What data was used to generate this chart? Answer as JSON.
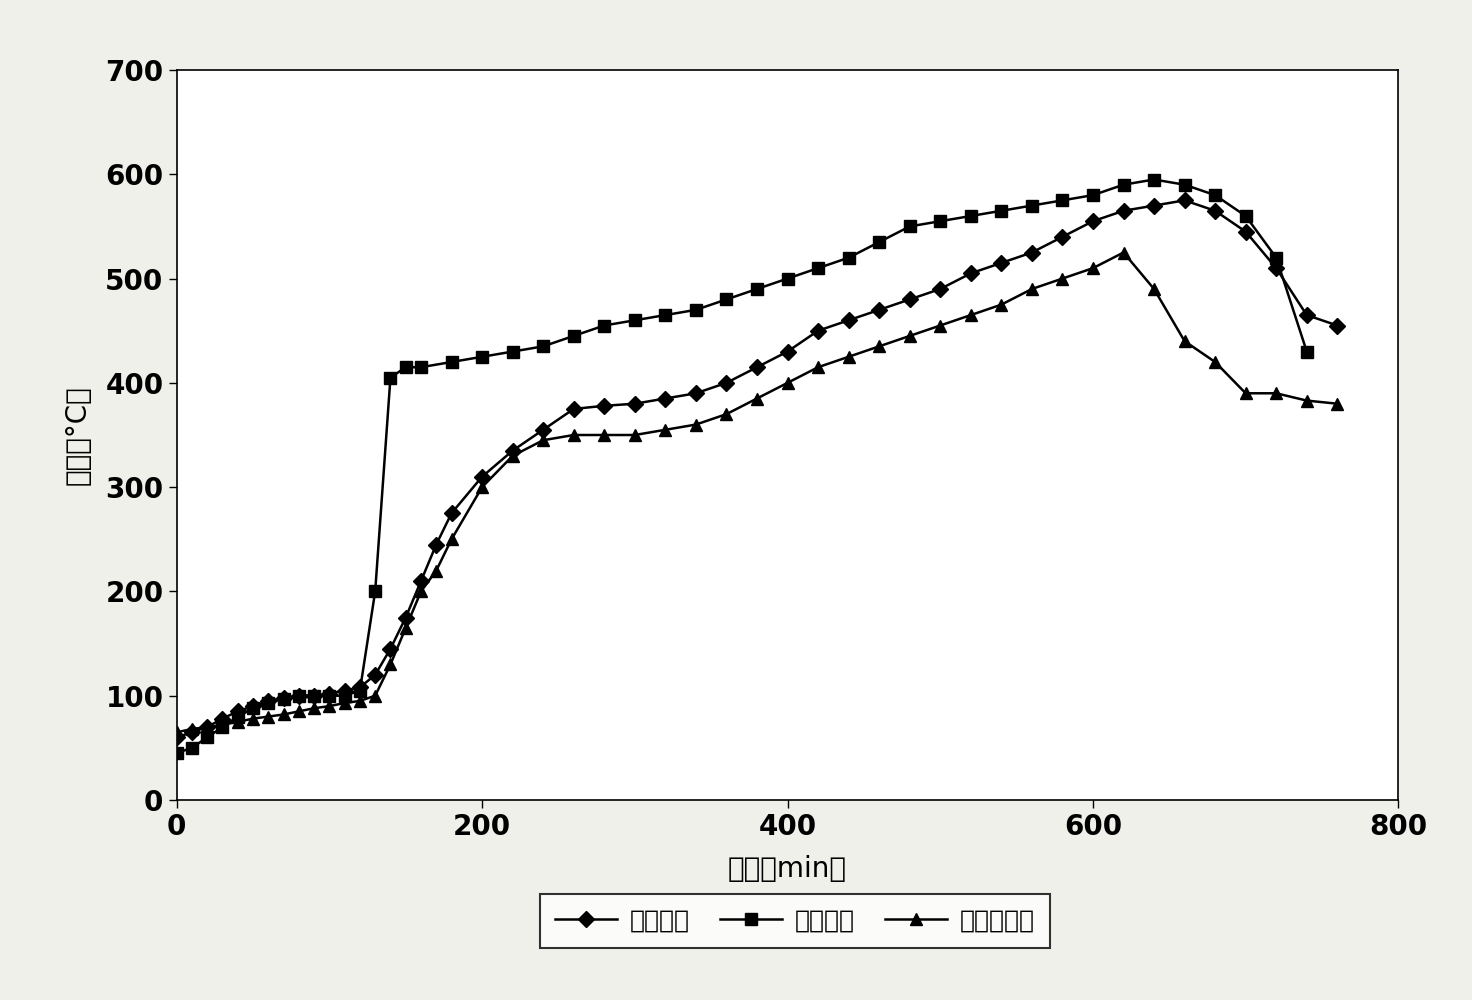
{
  "title": "",
  "xlabel": "时间（min）",
  "ylabel": "温度（°C）",
  "xlim": [
    0,
    800
  ],
  "ylim": [
    0,
    700
  ],
  "xticks": [
    0,
    200,
    400,
    600,
    800
  ],
  "yticks": [
    0,
    100,
    200,
    300,
    400,
    500,
    600,
    700
  ],
  "series": [
    {
      "label": "自然状态",
      "marker": "D",
      "x": [
        0,
        10,
        20,
        30,
        40,
        50,
        60,
        70,
        80,
        90,
        100,
        110,
        120,
        130,
        140,
        150,
        160,
        170,
        180,
        200,
        220,
        240,
        260,
        280,
        300,
        320,
        340,
        360,
        380,
        400,
        420,
        440,
        460,
        480,
        500,
        520,
        540,
        560,
        580,
        600,
        620,
        640,
        660,
        680,
        700,
        720,
        740,
        760
      ],
      "y": [
        60,
        65,
        70,
        78,
        85,
        90,
        95,
        98,
        100,
        100,
        102,
        105,
        108,
        120,
        145,
        175,
        210,
        245,
        275,
        310,
        335,
        355,
        375,
        378,
        380,
        385,
        390,
        400,
        415,
        430,
        450,
        460,
        470,
        480,
        490,
        505,
        515,
        525,
        540,
        555,
        565,
        570,
        575,
        565,
        545,
        510,
        465,
        455
      ]
    },
    {
      "label": "加湿状态",
      "marker": "s",
      "x": [
        0,
        10,
        20,
        30,
        40,
        50,
        60,
        70,
        80,
        90,
        100,
        110,
        120,
        130,
        140,
        150,
        160,
        180,
        200,
        220,
        240,
        260,
        280,
        300,
        320,
        340,
        360,
        380,
        400,
        420,
        440,
        460,
        480,
        500,
        520,
        540,
        560,
        580,
        600,
        620,
        640,
        660,
        680,
        700,
        720,
        740
      ],
      "y": [
        45,
        50,
        60,
        70,
        80,
        88,
        93,
        97,
        100,
        100,
        100,
        100,
        105,
        200,
        405,
        415,
        415,
        420,
        425,
        430,
        435,
        445,
        455,
        460,
        465,
        470,
        480,
        490,
        500,
        510,
        520,
        535,
        550,
        555,
        560,
        565,
        570,
        575,
        580,
        590,
        595,
        590,
        580,
        560,
        520,
        430
      ]
    },
    {
      "label": "加空气状态",
      "marker": "^",
      "x": [
        0,
        10,
        20,
        30,
        40,
        50,
        60,
        70,
        80,
        90,
        100,
        110,
        120,
        130,
        140,
        150,
        160,
        170,
        180,
        200,
        220,
        240,
        260,
        280,
        300,
        320,
        340,
        360,
        380,
        400,
        420,
        440,
        460,
        480,
        500,
        520,
        540,
        560,
        580,
        600,
        620,
        640,
        660,
        680,
        700,
        720,
        740,
        760
      ],
      "y": [
        65,
        68,
        70,
        72,
        75,
        78,
        80,
        82,
        85,
        88,
        90,
        93,
        95,
        100,
        130,
        165,
        200,
        220,
        250,
        300,
        330,
        345,
        350,
        350,
        350,
        355,
        360,
        370,
        385,
        400,
        415,
        425,
        435,
        445,
        455,
        465,
        475,
        490,
        500,
        510,
        525,
        490,
        440,
        420,
        390,
        390,
        383,
        380
      ]
    }
  ],
  "bg_color": "#f0f0ea",
  "plot_bg": "#ffffff",
  "tick_fontsize": 20,
  "label_fontsize": 20,
  "legend_fontsize": 18,
  "markersize": 8,
  "linewidth": 1.8
}
